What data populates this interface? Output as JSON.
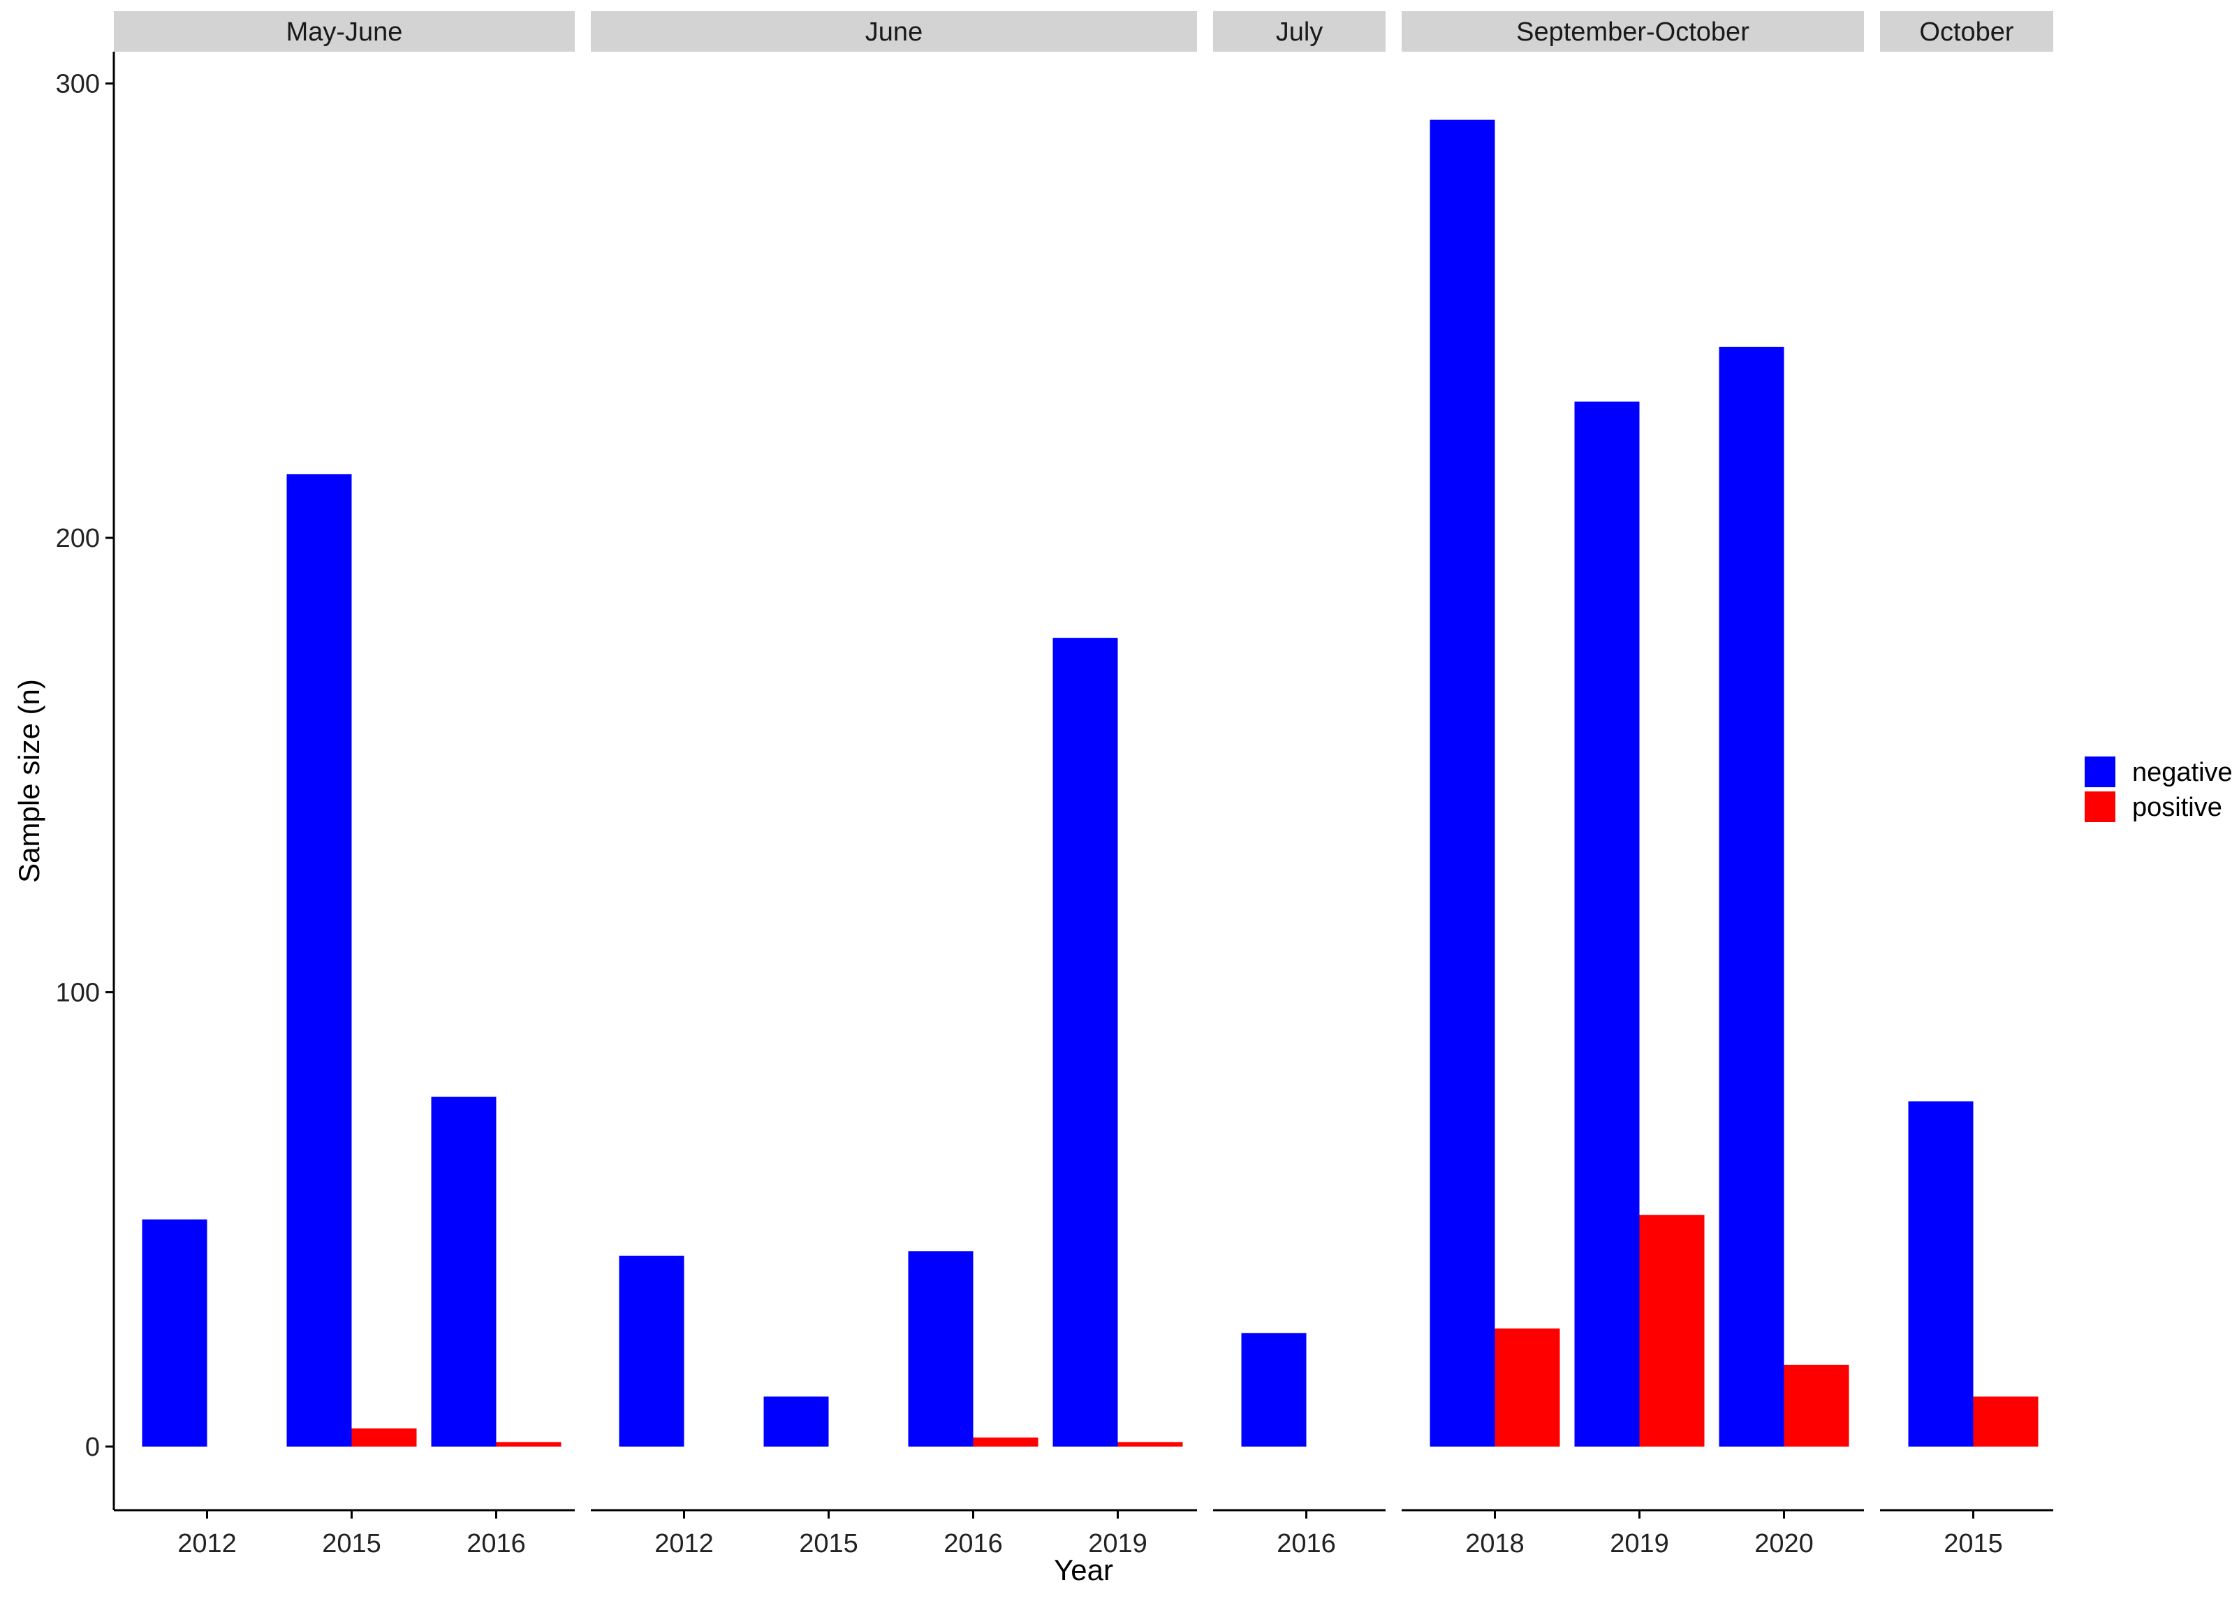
{
  "chart_data": {
    "type": "bar",
    "xlabel": "Year",
    "ylabel": "Sample size (n)",
    "y_ticks": [
      "0",
      "100",
      "200",
      "300"
    ],
    "y_tick_values": [
      0,
      100,
      200,
      300
    ],
    "ylim": [
      -14,
      307
    ],
    "grid": false,
    "legend_position": "right",
    "series_names": [
      "negative",
      "positive"
    ],
    "colors": {
      "negative": "#0000FF",
      "positive": "#FF0000",
      "strip": "#D3D3D3",
      "axis": "#000000"
    },
    "facets": [
      {
        "label": "May-June",
        "categories": [
          "2012",
          "2015",
          "2016"
        ],
        "negative": [
          50,
          214,
          77
        ],
        "positive": [
          0,
          4,
          1
        ]
      },
      {
        "label": "June",
        "categories": [
          "2012",
          "2015",
          "2016",
          "2019"
        ],
        "negative": [
          42,
          11,
          43,
          178
        ],
        "positive": [
          0,
          0,
          2,
          1
        ]
      },
      {
        "label": "July",
        "categories": [
          "2016"
        ],
        "negative": [
          25
        ],
        "positive": [
          0
        ]
      },
      {
        "label": "September-October",
        "categories": [
          "2018",
          "2019",
          "2020"
        ],
        "negative": [
          292,
          230,
          242
        ],
        "positive": [
          26,
          51,
          18
        ]
      },
      {
        "label": "October",
        "categories": [
          "2015"
        ],
        "negative": [
          76
        ],
        "positive": [
          11
        ]
      }
    ]
  }
}
